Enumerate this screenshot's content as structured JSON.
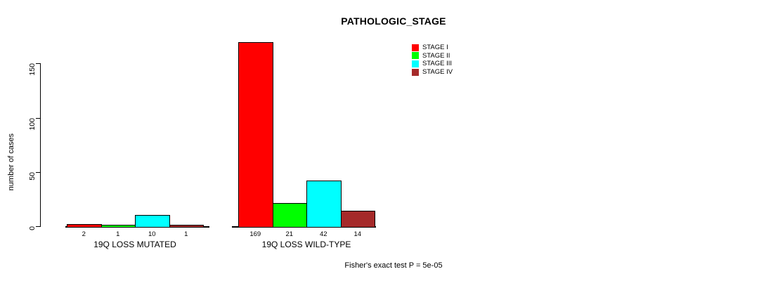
{
  "chart_data": {
    "type": "bar",
    "title": "PATHOLOGIC_STAGE",
    "ylabel": "number of cases",
    "xlabel": "",
    "ylim": [
      0,
      150
    ],
    "yticks": [
      0,
      50,
      100,
      150
    ],
    "grid": false,
    "legend_position": "top-right",
    "categories": [
      "19Q LOSS MUTATED",
      "19Q LOSS WILD-TYPE"
    ],
    "series": [
      {
        "name": "STAGE I",
        "color": "#FF0000",
        "values": [
          2,
          169
        ]
      },
      {
        "name": "STAGE II",
        "color": "#00FF00",
        "values": [
          1,
          21
        ]
      },
      {
        "name": "STAGE III",
        "color": "#00FFFF",
        "values": [
          10,
          42
        ]
      },
      {
        "name": "STAGE IV",
        "color": "#A52A2A",
        "values": [
          1,
          14
        ]
      }
    ],
    "bar_value_labels": [
      [
        "2",
        "1",
        "10",
        "1"
      ],
      [
        "169",
        "21",
        "42",
        "14"
      ]
    ],
    "annotation": "Fisher's exact test P = 5e-05"
  }
}
